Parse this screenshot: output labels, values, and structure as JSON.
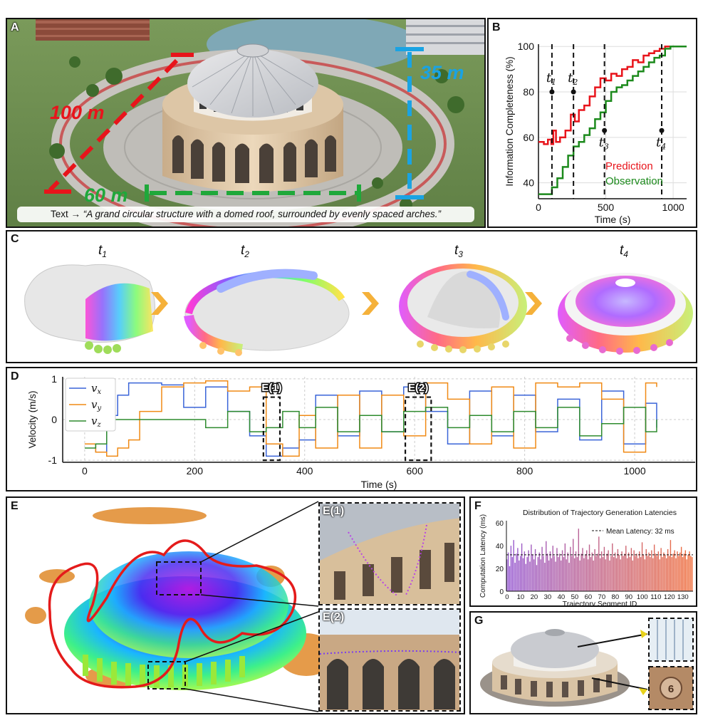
{
  "panels": {
    "a": {
      "label": "A",
      "dim_red": "100 m",
      "dim_green": "60 m",
      "dim_blue": "35 m",
      "text_prefix": "Text →",
      "prompt": "“A grand circular structure with a domed roof, surrounded by evenly spaced arches.”"
    },
    "b": {
      "label": "B"
    },
    "c": {
      "label": "C",
      "stages": [
        "t1",
        "t2",
        "t3",
        "t4"
      ]
    },
    "d": {
      "label": "D",
      "callout_1": "E(1)",
      "callout_2": "E(2)"
    },
    "e": {
      "label": "E",
      "inset_1": "E(1)",
      "inset_2": "E(2)"
    },
    "f": {
      "label": "F"
    },
    "g": {
      "label": "G"
    }
  },
  "chart_data": [
    {
      "id": "B",
      "type": "line",
      "title": "",
      "xlabel": "Time (s)",
      "ylabel": "Information Completeness (%)",
      "xlim": [
        0,
        1100
      ],
      "ylim": [
        33,
        101
      ],
      "xticks": [
        0,
        500,
        1000
      ],
      "yticks": [
        40,
        60,
        80,
        100
      ],
      "legend": [
        "Prediction",
        "Observation"
      ],
      "series": [
        {
          "name": "Prediction",
          "color": "#e8141b",
          "x": [
            0,
            40,
            70,
            95,
            110,
            130,
            160,
            200,
            240,
            270,
            300,
            340,
            380,
            420,
            460,
            500,
            540,
            580,
            620,
            660,
            700,
            740,
            780,
            820,
            860,
            900,
            940,
            980,
            1020,
            1100
          ],
          "y": [
            58,
            57,
            59,
            57,
            63,
            58,
            60,
            63,
            70,
            67,
            72,
            74,
            78,
            82,
            86,
            85,
            88,
            87,
            90,
            91,
            94,
            93,
            96,
            97,
            98,
            99,
            100,
            100,
            100,
            100
          ]
        },
        {
          "name": "Observation",
          "color": "#1c8a1c",
          "x": [
            0,
            60,
            100,
            140,
            180,
            220,
            260,
            300,
            340,
            380,
            420,
            460,
            500,
            540,
            580,
            620,
            660,
            700,
            740,
            780,
            820,
            860,
            900,
            940,
            980,
            1100
          ],
          "y": [
            35,
            35,
            38,
            42,
            47,
            52,
            56,
            58,
            61,
            64,
            68,
            71,
            76,
            80,
            82,
            83,
            85,
            87,
            89,
            91,
            93,
            95,
            96,
            99,
            100,
            100
          ]
        }
      ],
      "markers": [
        {
          "label": "t1",
          "x": 100,
          "y": 80
        },
        {
          "label": "t2",
          "x": 260,
          "y": 80
        },
        {
          "label": "t3",
          "x": 490,
          "y": 63
        },
        {
          "label": "t4",
          "x": 915,
          "y": 63
        }
      ]
    },
    {
      "id": "D",
      "type": "line",
      "title": "",
      "xlabel": "Time (s)",
      "ylabel": "Velocity (m/s)",
      "xlim": [
        -40,
        1110
      ],
      "ylim": [
        -1.05,
        1.05
      ],
      "xticks": [
        0,
        200,
        400,
        600,
        800,
        1000
      ],
      "yticks": [
        -1,
        0,
        1
      ],
      "legend": [
        "vx",
        "vy",
        "vz"
      ],
      "series": [
        {
          "name": "vx",
          "color": "#3a64d8",
          "x": [
            0,
            20,
            40,
            60,
            80,
            100,
            140,
            180,
            220,
            260,
            300,
            330,
            360,
            390,
            420,
            460,
            500,
            540,
            580,
            620,
            660,
            700,
            740,
            780,
            820,
            860,
            900,
            940,
            980,
            1020,
            1040
          ],
          "y": [
            -0.6,
            -0.8,
            0.1,
            0.6,
            0.9,
            0.9,
            0.85,
            0.3,
            0.8,
            0.2,
            -0.4,
            -0.9,
            -0.7,
            -0.5,
            0.6,
            -0.4,
            0.7,
            -0.3,
            0.8,
            0.2,
            -0.6,
            0.7,
            -0.4,
            0.6,
            -0.3,
            0.5,
            -0.5,
            0.7,
            -0.6,
            0.4,
            -0.2
          ]
        },
        {
          "name": "vy",
          "color": "#f08a15",
          "x": [
            0,
            20,
            40,
            60,
            80,
            100,
            140,
            180,
            220,
            260,
            300,
            330,
            360,
            390,
            420,
            460,
            500,
            540,
            580,
            620,
            660,
            700,
            740,
            780,
            820,
            860,
            900,
            940,
            980,
            1020,
            1040
          ],
          "y": [
            -0.6,
            -0.8,
            -0.9,
            -0.7,
            -0.5,
            0.2,
            0.8,
            0.9,
            0.95,
            0.7,
            0.8,
            -0.6,
            -0.9,
            0.1,
            -0.7,
            0.6,
            -0.7,
            0.6,
            -0.4,
            0.9,
            0.5,
            -0.6,
            0.8,
            -0.7,
            0.9,
            0.8,
            0.9,
            0.5,
            -0.8,
            0.9,
            0.8
          ]
        },
        {
          "name": "vz",
          "color": "#2e8b2e",
          "x": [
            0,
            20,
            40,
            60,
            80,
            100,
            140,
            180,
            220,
            260,
            300,
            330,
            360,
            390,
            420,
            460,
            500,
            540,
            580,
            620,
            660,
            700,
            740,
            780,
            820,
            860,
            900,
            940,
            980,
            1020,
            1040
          ],
          "y": [
            -0.7,
            -0.6,
            0.0,
            0.0,
            0.0,
            0.0,
            0.0,
            0.0,
            -0.2,
            0.2,
            -0.3,
            -0.2,
            0.2,
            -0.2,
            0.3,
            -0.3,
            0.1,
            -0.3,
            0.2,
            0.3,
            -0.2,
            0.1,
            -0.3,
            0.2,
            -0.2,
            0.3,
            -0.4,
            -0.1,
            0.3,
            -0.3,
            0.0
          ]
        }
      ],
      "highlights": [
        {
          "label": "E(1)",
          "x0": 325,
          "x1": 355
        },
        {
          "label": "E(2)",
          "x0": 583,
          "x1": 630
        }
      ]
    },
    {
      "id": "F",
      "type": "bar",
      "title": "Distribution of Trajectory Generation Latencies",
      "xlabel": "Trajectory Segment ID",
      "ylabel": "Computation Latency (ms)",
      "ylim": [
        0,
        62
      ],
      "xticks": [
        0,
        10,
        20,
        30,
        40,
        50,
        60,
        70,
        80,
        90,
        100,
        110,
        120,
        130
      ],
      "yticks": [
        0,
        20,
        40,
        60
      ],
      "mean_line": {
        "value": 32,
        "label": "Mean Latency: 32 ms"
      },
      "values": [
        28,
        34,
        22,
        40,
        30,
        45,
        25,
        33,
        38,
        27,
        31,
        42,
        29,
        35,
        24,
        30,
        36,
        26,
        41,
        32,
        28,
        37,
        23,
        30,
        34,
        28,
        39,
        31,
        25,
        44,
        33,
        27,
        35,
        29,
        40,
        31,
        26,
        38,
        30,
        33,
        27,
        36,
        30,
        42,
        28,
        34,
        25,
        39,
        31,
        46,
        29,
        35,
        30,
        55,
        27,
        33,
        38,
        29,
        32,
        36,
        28,
        41,
        30,
        34,
        27,
        37,
        31,
        33,
        48,
        29,
        35,
        30,
        39,
        28,
        33,
        36,
        27,
        31,
        42,
        30,
        34,
        29,
        37,
        32,
        28,
        35,
        31,
        33,
        40,
        29,
        34,
        30,
        38,
        27,
        36,
        31,
        33,
        29,
        35,
        30,
        43,
        32,
        28,
        37,
        31,
        34,
        30,
        36,
        29,
        41,
        33,
        31,
        35,
        28,
        38,
        30,
        34,
        32,
        29,
        37,
        31,
        45,
        30,
        33,
        36,
        29,
        35,
        31,
        34,
        39,
        30,
        33,
        36,
        28,
        32,
        35,
        31,
        30
      ]
    }
  ]
}
